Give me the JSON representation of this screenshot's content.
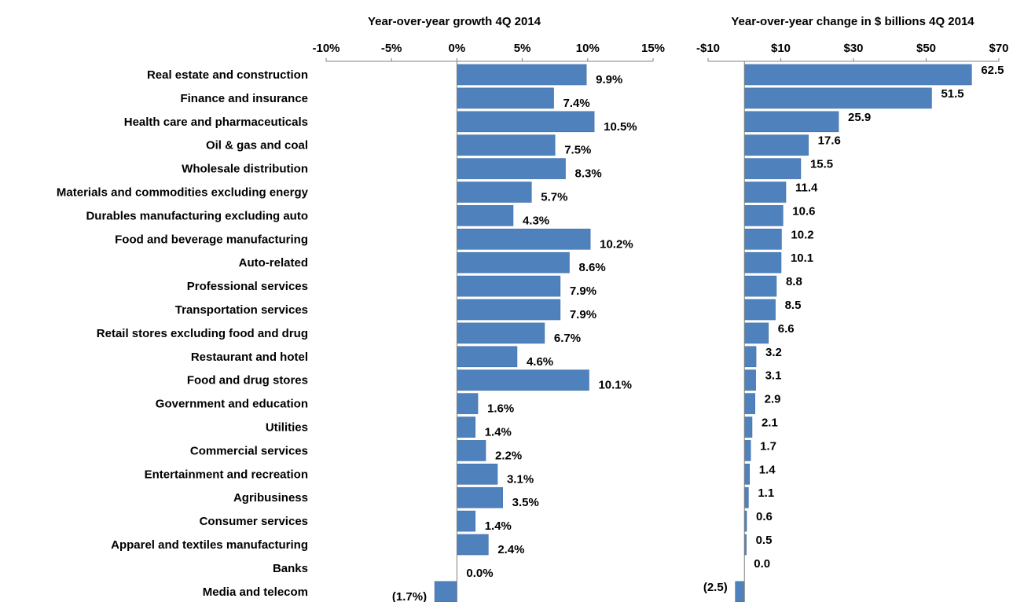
{
  "colors": {
    "bar": "#4F81BD",
    "bar_edge": "#3F6FA8",
    "axis": "#808080",
    "text": "#000000"
  },
  "chart_data": [
    {
      "type": "bar",
      "orientation": "horizontal",
      "title": "Year-over-year growth 4Q 2014",
      "xlabel": "",
      "ylabel": "",
      "xlim": [
        -10,
        15
      ],
      "ticks": [
        -10,
        -5,
        0,
        5,
        10,
        15
      ],
      "tick_labels": [
        "-10%",
        "-5%",
        "0%",
        "5%",
        "10%",
        "15%"
      ],
      "grid": false,
      "categories": [
        "Real estate and construction",
        "Finance and insurance",
        "Health care and pharmaceuticals",
        "Oil & gas and coal",
        "Wholesale distribution",
        "Materials and commodities excluding energy",
        "Durables manufacturing excluding auto",
        "Food and beverage manufacturing",
        "Auto-related",
        "Professional services",
        "Transportation services",
        "Retail stores excluding food and drug",
        "Restaurant and hotel",
        "Food and drug stores",
        "Government and education",
        "Utilities",
        "Commercial services",
        "Entertainment and recreation",
        "Agribusiness",
        "Consumer services",
        "Apparel and textiles manufacturing",
        "Banks",
        "Media and telecom"
      ],
      "values": [
        9.9,
        7.4,
        10.5,
        7.5,
        8.3,
        5.7,
        4.3,
        10.2,
        8.6,
        7.9,
        7.9,
        6.7,
        4.6,
        10.1,
        1.6,
        1.4,
        2.2,
        3.1,
        3.5,
        1.4,
        2.4,
        0.0,
        -1.7
      ],
      "data_labels": [
        "9.9%",
        "7.4%",
        "10.5%",
        "7.5%",
        "8.3%",
        "5.7%",
        "4.3%",
        "10.2%",
        "8.6%",
        "7.9%",
        "7.9%",
        "6.7%",
        "4.6%",
        "10.1%",
        "1.6%",
        "1.4%",
        "2.2%",
        "3.1%",
        "3.5%",
        "1.4%",
        "2.4%",
        "0.0%",
        "(1.7%)"
      ]
    },
    {
      "type": "bar",
      "orientation": "horizontal",
      "title": "Year-over-year change in $ billions 4Q 2014",
      "xlabel": "",
      "ylabel": "",
      "xlim": [
        -10,
        70
      ],
      "ticks": [
        -10,
        10,
        30,
        50,
        70
      ],
      "tick_labels": [
        "-$10",
        "$10",
        "$30",
        "$50",
        "$70"
      ],
      "grid": false,
      "values": [
        62.5,
        51.5,
        25.9,
        17.6,
        15.5,
        11.4,
        10.6,
        10.2,
        10.1,
        8.8,
        8.5,
        6.6,
        3.2,
        3.1,
        2.9,
        2.1,
        1.7,
        1.4,
        1.1,
        0.6,
        0.5,
        0.0,
        -2.5
      ],
      "data_labels": [
        "62.5",
        "51.5",
        "25.9",
        "17.6",
        "15.5",
        "11.4",
        "10.6",
        "10.2",
        "10.1",
        "8.8",
        "8.5",
        "6.6",
        "3.2",
        "3.1",
        "2.9",
        "2.1",
        "1.7",
        "1.4",
        "1.1",
        "0.6",
        "0.5",
        "0.0",
        "(2.5)"
      ]
    }
  ]
}
